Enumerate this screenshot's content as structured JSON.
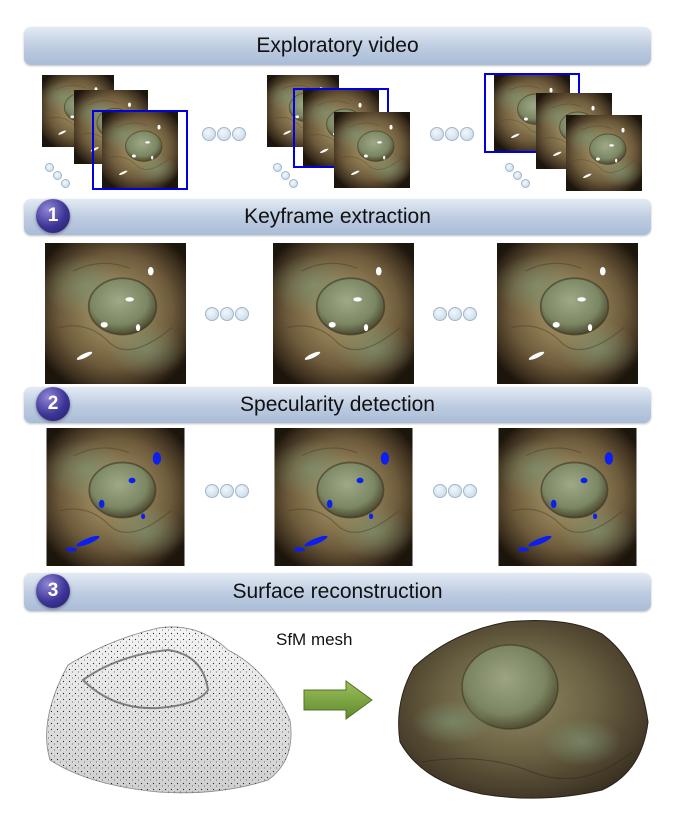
{
  "header": {
    "title": "Exploratory video"
  },
  "steps": [
    {
      "number": "1",
      "label": "Keyframe extraction"
    },
    {
      "number": "2",
      "label": "Specularity detection"
    },
    {
      "number": "3",
      "label": "Surface reconstruction"
    }
  ],
  "reconstruction": {
    "mesh_caption": "SfM mesh"
  },
  "colors": {
    "bar": "#bccbe0",
    "step_circle": "#3d3596",
    "selection_border": "#0000e0",
    "specular_mask": "#0a1ff0",
    "arrow": "#7aa33d"
  }
}
